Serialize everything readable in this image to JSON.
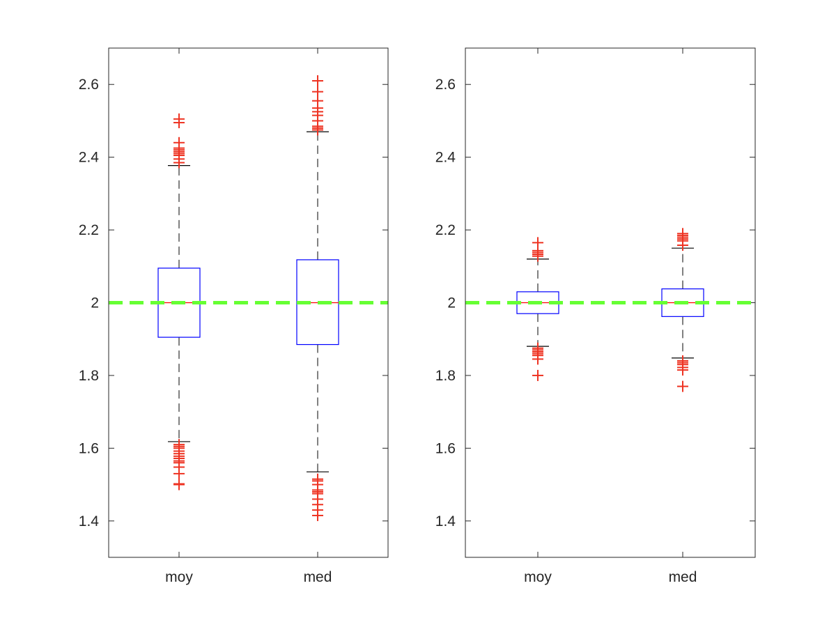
{
  "chart_data": [
    {
      "type": "box",
      "title": "",
      "xlabel": "",
      "ylabel": "",
      "ylim": [
        1.3,
        2.7
      ],
      "yticks": [
        1.4,
        1.6,
        1.8,
        2.0,
        2.2,
        2.4,
        2.6
      ],
      "ytick_labels": [
        "1.4",
        "1.6",
        "1.8",
        "2",
        "2.2",
        "2.4",
        "2.6"
      ],
      "categories": [
        "moy",
        "med"
      ],
      "reference_line": {
        "y": 2.0,
        "style": "dashed",
        "color": "#66ff33"
      },
      "boxes": [
        {
          "category": "moy",
          "q1": 1.905,
          "median": 2.0,
          "q3": 2.095,
          "whisker_low": 1.618,
          "whisker_high": 2.377,
          "outliers": [
            1.5,
            1.502,
            1.53,
            1.548,
            1.56,
            1.565,
            1.572,
            1.578,
            1.585,
            1.592,
            1.6,
            1.605,
            1.61,
            2.385,
            2.395,
            2.405,
            2.41,
            2.415,
            2.42,
            2.425,
            2.44,
            2.495,
            2.505
          ]
        },
        {
          "category": "med",
          "q1": 1.885,
          "median": 2.0,
          "q3": 2.118,
          "whisker_low": 1.535,
          "whisker_high": 2.47,
          "outliers": [
            1.415,
            1.43,
            1.445,
            1.46,
            1.475,
            1.48,
            1.485,
            1.5,
            1.51,
            1.515,
            2.475,
            2.48,
            2.485,
            2.5,
            2.515,
            2.525,
            2.535,
            2.555,
            2.58,
            2.61
          ]
        }
      ],
      "colors": {
        "box": "#0000ff",
        "median": "#ff0000",
        "whisker": "#000000",
        "outlier": "#ee3322"
      }
    },
    {
      "type": "box",
      "title": "",
      "xlabel": "",
      "ylabel": "",
      "ylim": [
        1.3,
        2.7
      ],
      "yticks": [
        1.4,
        1.6,
        1.8,
        2.0,
        2.2,
        2.4,
        2.6
      ],
      "ytick_labels": [
        "1.4",
        "1.6",
        "1.8",
        "2",
        "2.2",
        "2.4",
        "2.6"
      ],
      "categories": [
        "moy",
        "med"
      ],
      "reference_line": {
        "y": 2.0,
        "style": "dashed",
        "color": "#66ff33"
      },
      "boxes": [
        {
          "category": "moy",
          "q1": 1.97,
          "median": 2.0,
          "q3": 2.03,
          "whisker_low": 1.88,
          "whisker_high": 2.12,
          "outliers": [
            1.8,
            1.845,
            1.855,
            1.86,
            1.865,
            1.87,
            1.875,
            2.128,
            2.133,
            2.138,
            2.143,
            2.165
          ]
        },
        {
          "category": "med",
          "q1": 1.962,
          "median": 2.0,
          "q3": 2.038,
          "whisker_low": 1.848,
          "whisker_high": 2.15,
          "outliers": [
            1.77,
            1.815,
            1.822,
            1.83,
            1.835,
            1.84,
            2.158,
            2.17,
            2.175,
            2.18,
            2.185,
            2.19
          ]
        }
      ],
      "colors": {
        "box": "#0000ff",
        "median": "#ff0000",
        "whisker": "#000000",
        "outlier": "#ee3322"
      }
    }
  ]
}
